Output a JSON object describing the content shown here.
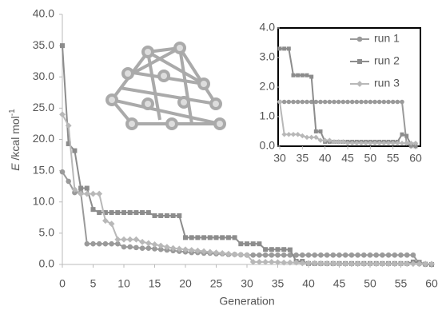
{
  "chart_data": {
    "type": "line",
    "xlabel": "Generation",
    "ylabel": {
      "symbol": "E",
      "unit": " /kcal mol",
      "exponent": "-1"
    },
    "x": [
      0,
      1,
      2,
      3,
      4,
      5,
      6,
      7,
      8,
      9,
      10,
      11,
      12,
      13,
      14,
      15,
      16,
      17,
      18,
      19,
      20,
      21,
      22,
      23,
      24,
      25,
      26,
      27,
      28,
      29,
      30,
      31,
      32,
      33,
      34,
      35,
      36,
      37,
      38,
      39,
      40,
      41,
      42,
      43,
      44,
      45,
      46,
      47,
      48,
      49,
      50,
      51,
      52,
      53,
      54,
      55,
      56,
      57,
      58,
      59,
      60
    ],
    "series": [
      {
        "name": "run 1",
        "color": "#9a9a9a",
        "marker": "circle",
        "values": [
          14.8,
          13.3,
          11.5,
          11.5,
          3.3,
          3.3,
          3.3,
          3.3,
          3.3,
          3.3,
          2.8,
          2.8,
          2.7,
          2.6,
          2.6,
          2.5,
          2.4,
          2.3,
          2.2,
          2.1,
          2.0,
          1.9,
          1.9,
          1.8,
          1.8,
          1.7,
          1.7,
          1.6,
          1.6,
          1.55,
          1.5,
          1.5,
          1.5,
          1.5,
          1.5,
          1.5,
          1.5,
          1.5,
          1.5,
          1.5,
          1.5,
          1.5,
          1.5,
          1.5,
          1.5,
          1.5,
          1.5,
          1.5,
          1.5,
          1.5,
          1.5,
          1.5,
          1.5,
          1.5,
          1.5,
          1.5,
          1.5,
          1.5,
          0.1,
          0,
          0
        ]
      },
      {
        "name": "run 2",
        "color": "#8c8c8c",
        "marker": "square",
        "values": [
          35,
          19.3,
          18.2,
          12.2,
          12.2,
          8.8,
          8.3,
          8.3,
          8.3,
          8.3,
          8.3,
          8.3,
          8.3,
          8.3,
          8.3,
          7.8,
          7.8,
          7.8,
          7.8,
          7.8,
          4.3,
          4.3,
          4.3,
          4.3,
          4.3,
          4.3,
          4.3,
          4.3,
          4.3,
          3.3,
          3.3,
          3.3,
          3.3,
          2.4,
          2.4,
          2.4,
          2.4,
          2.35,
          0.5,
          0.5,
          0.15,
          0.15,
          0.15,
          0.15,
          0.15,
          0.15,
          0.15,
          0.15,
          0.15,
          0.15,
          0.15,
          0.15,
          0.15,
          0.15,
          0.15,
          0.15,
          0.15,
          0.4,
          0.35,
          0.05,
          0
        ]
      },
      {
        "name": "run 3",
        "color": "#b8b8b8",
        "marker": "diamond",
        "values": [
          24,
          22.2,
          12,
          11.3,
          11.3,
          11.3,
          11.3,
          7,
          6.5,
          4,
          4,
          4,
          4,
          3.6,
          3.4,
          3.2,
          3.0,
          2.8,
          2.6,
          2.5,
          2.4,
          2.3,
          2.2,
          2.1,
          2.0,
          1.9,
          1.8,
          1.7,
          1.6,
          1.55,
          1.5,
          0.4,
          0.4,
          0.4,
          0.4,
          0.35,
          0.3,
          0.3,
          0.3,
          0.2,
          0.2,
          0.2,
          0.15,
          0.15,
          0.15,
          0.1,
          0.1,
          0.1,
          0.1,
          0.1,
          0.1,
          0.1,
          0.1,
          0.1,
          0.1,
          0.1,
          0.1,
          0.1,
          0.1,
          0.1,
          0.1
        ]
      }
    ],
    "xlim": [
      0,
      60
    ],
    "xticks": [
      0,
      5,
      10,
      15,
      20,
      25,
      30,
      35,
      40,
      45,
      50,
      55,
      60
    ],
    "ylim": [
      0,
      40
    ],
    "yticks": [
      {
        "value": 0,
        "label": "0.0"
      },
      {
        "value": 5,
        "label": "5.0"
      },
      {
        "value": 10,
        "label": "10.0"
      },
      {
        "value": 15,
        "label": "15.0"
      },
      {
        "value": 20,
        "label": "20.0"
      },
      {
        "value": 25,
        "label": "25.0"
      },
      {
        "value": 30,
        "label": "30.0"
      },
      {
        "value": 35,
        "label": "35.0"
      },
      {
        "value": 40,
        "label": "40.0"
      }
    ],
    "inset": {
      "xlim": [
        30,
        60
      ],
      "xticks": [
        30,
        35,
        40,
        45,
        50,
        55,
        60
      ],
      "ylim": [
        0,
        4
      ],
      "yticks": [
        {
          "value": 0,
          "label": "0.0"
        },
        {
          "value": 1,
          "label": "1.0"
        },
        {
          "value": 2,
          "label": "2.0"
        },
        {
          "value": 3,
          "label": "3.0"
        },
        {
          "value": 4,
          "label": "4.0"
        }
      ],
      "legend": "right"
    }
  }
}
